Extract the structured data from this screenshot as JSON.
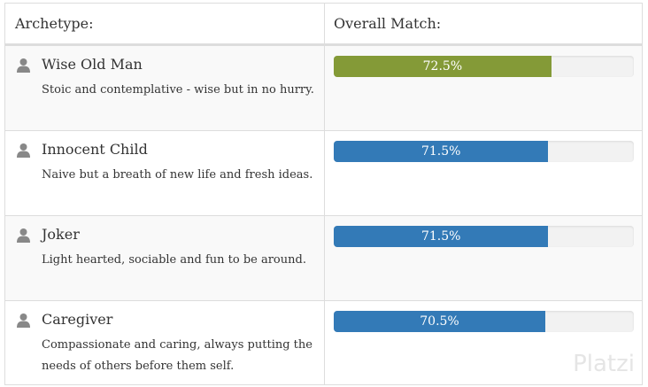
{
  "header": {
    "archetype": "Archetype:",
    "match": "Overall Match:"
  },
  "rows": [
    {
      "name": "Wise Old Man",
      "description": "Stoic and contemplative - wise but in no hurry.",
      "match": 72.5,
      "match_label": "72.5%",
      "color": "#849a37"
    },
    {
      "name": "Innocent Child",
      "description": "Naive but a breath of new life and fresh ideas.",
      "match": 71.5,
      "match_label": "71.5%",
      "color": "#337ab7"
    },
    {
      "name": "Joker",
      "description": "Light hearted, sociable and fun to be around.",
      "match": 71.5,
      "match_label": "71.5%",
      "color": "#337ab7"
    },
    {
      "name": "Caregiver",
      "description": "Compassionate and caring, always putting the needs of others before them self.",
      "match": 70.5,
      "match_label": "70.5%",
      "color": "#337ab7"
    }
  ],
  "watermark": "Platzi"
}
